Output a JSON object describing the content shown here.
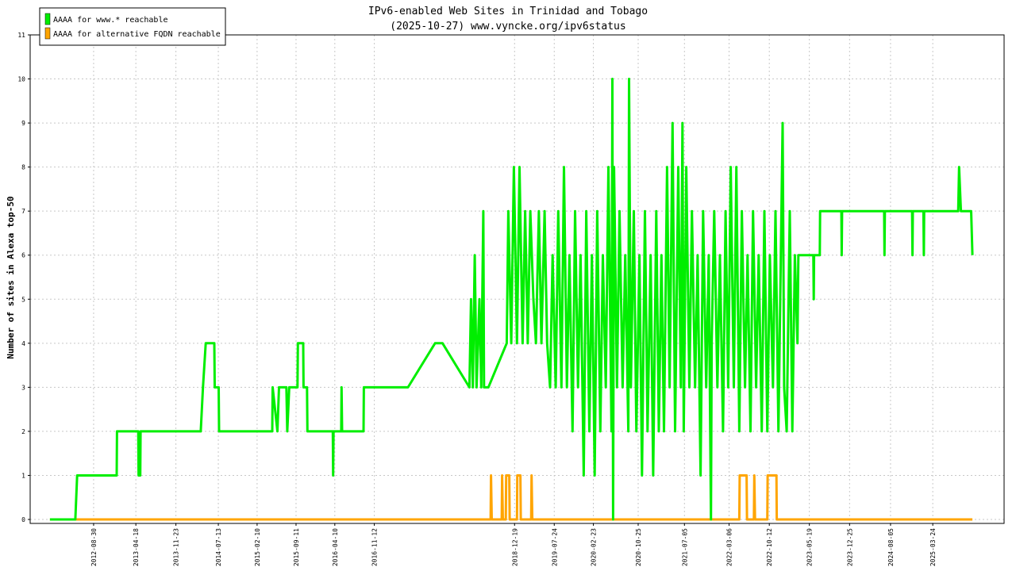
{
  "chart_data": {
    "type": "line",
    "title": "IPv6-enabled Web Sites in Trinidad and Tobago",
    "subtitle": "(2025-10-27) www.vyncke.org/ipv6status",
    "y_label": "Number of sites in Alexa top-50",
    "xlim": [
      "2011-09-18",
      "2026-04-18"
    ],
    "xticks": [
      "2012-08-30",
      "2013-04-18",
      "2013-11-23",
      "2014-07-13",
      "2015-02-10",
      "2015-09-11",
      "2016-04-10",
      "2016-11-12",
      "2018-12-19",
      "2019-07-24",
      "2020-02-23",
      "2020-10-25",
      "2021-07-05",
      "2022-03-06",
      "2022-10-12",
      "2023-05-19",
      "2023-12-25",
      "2024-08-05",
      "2025-03-24"
    ],
    "ylim": [
      0,
      11
    ],
    "yticks": [
      0,
      1,
      2,
      3,
      4,
      5,
      6,
      7,
      8,
      9,
      10,
      11
    ],
    "grid": true,
    "legend": "top-left",
    "series": [
      {
        "name": "AAAA for www.* reachable",
        "color": "#00ee00",
        "x": [
          "2012-01-04",
          "2012-05-22",
          "2012-06-01",
          "2013-01-03",
          "2013-01-05",
          "2013-05-01",
          "2013-05-03",
          "2013-05-12",
          "2013-05-14",
          "2014-04-08",
          "2014-04-20",
          "2014-05-05",
          "2014-06-21",
          "2014-06-23",
          "2014-07-15",
          "2014-07-17",
          "2015-05-04",
          "2015-05-06",
          "2015-06-01",
          "2015-06-10",
          "2015-07-20",
          "2015-07-25",
          "2015-08-05",
          "2015-09-19",
          "2015-09-21",
          "2015-10-20",
          "2015-10-22",
          "2015-11-10",
          "2015-11-12",
          "2016-03-30",
          "2016-04-01",
          "2016-04-03",
          "2016-05-15",
          "2016-05-17",
          "2016-05-20",
          "2016-09-14",
          "2016-09-16",
          "2017-05-15",
          "2017-10-10",
          "2017-11-20",
          "2018-04-16",
          "2018-04-25",
          "2018-05-05",
          "2018-05-15",
          "2018-05-25",
          "2018-06-10",
          "2018-06-20",
          "2018-07-01",
          "2018-07-05",
          "2018-07-29",
          "2018-11-06",
          "2018-11-15",
          "2018-12-01",
          "2018-12-15",
          "2019-01-01",
          "2019-01-15",
          "2019-02-01",
          "2019-02-15",
          "2019-03-01",
          "2019-03-15",
          "2019-04-01",
          "2019-04-15",
          "2019-05-01",
          "2019-05-15",
          "2019-06-01",
          "2019-06-15",
          "2019-07-01",
          "2019-07-15",
          "2019-08-01",
          "2019-08-15",
          "2019-09-01",
          "2019-09-15",
          "2019-10-01",
          "2019-10-15",
          "2019-11-01",
          "2019-11-15",
          "2019-12-01",
          "2019-12-15",
          "2020-01-01",
          "2020-01-15",
          "2020-02-01",
          "2020-02-15",
          "2020-03-01",
          "2020-03-15",
          "2020-04-01",
          "2020-04-15",
          "2020-05-01",
          "2020-05-15",
          "2020-06-01",
          "2020-06-06",
          "2020-06-10",
          "2020-06-15",
          "2020-07-01",
          "2020-07-15",
          "2020-08-01",
          "2020-08-15",
          "2020-09-01",
          "2020-09-05",
          "2020-09-15",
          "2020-10-01",
          "2020-10-15",
          "2020-11-01",
          "2020-11-15",
          "2020-12-01",
          "2020-12-15",
          "2021-01-01",
          "2021-01-15",
          "2021-02-01",
          "2021-02-15",
          "2021-03-01",
          "2021-03-15",
          "2021-04-01",
          "2021-04-15",
          "2021-05-01",
          "2021-05-15",
          "2021-06-01",
          "2021-06-15",
          "2021-06-24",
          "2021-07-01",
          "2021-07-15",
          "2021-08-01",
          "2021-08-15",
          "2021-09-01",
          "2021-09-15",
          "2021-10-01",
          "2021-10-15",
          "2021-11-01",
          "2021-11-15",
          "2021-11-27",
          "2021-12-01",
          "2021-12-15",
          "2022-01-01",
          "2022-01-15",
          "2022-02-01",
          "2022-02-15",
          "2022-03-01",
          "2022-03-15",
          "2022-04-01",
          "2022-04-15",
          "2022-05-01",
          "2022-05-15",
          "2022-06-01",
          "2022-06-15",
          "2022-07-01",
          "2022-07-15",
          "2022-08-01",
          "2022-08-15",
          "2022-09-01",
          "2022-09-15",
          "2022-10-01",
          "2022-10-15",
          "2022-11-01",
          "2022-11-15",
          "2022-12-01",
          "2022-12-24",
          "2023-01-01",
          "2023-01-15",
          "2023-02-01",
          "2023-02-15",
          "2023-03-01",
          "2023-03-15",
          "2023-03-20",
          "2023-06-10",
          "2023-06-12",
          "2023-06-14",
          "2023-07-15",
          "2023-07-17",
          "2023-11-10",
          "2023-11-12",
          "2023-11-14",
          "2024-07-01",
          "2024-07-03",
          "2024-07-05",
          "2024-12-01",
          "2024-12-03",
          "2024-12-05",
          "2025-02-01",
          "2025-02-03",
          "2025-02-05",
          "2025-08-10",
          "2025-08-15",
          "2025-08-25",
          "2025-10-20",
          "2025-10-27"
        ],
        "values": [
          0,
          0,
          1,
          1,
          2,
          2,
          1,
          1,
          2,
          2,
          3,
          4,
          4,
          3,
          3,
          2,
          2,
          3,
          2,
          3,
          3,
          2,
          3,
          3,
          4,
          4,
          3,
          3,
          2,
          2,
          1,
          2,
          2,
          3,
          2,
          2,
          3,
          3,
          4,
          4,
          3,
          5,
          3,
          6,
          3,
          5,
          3,
          7,
          3,
          3,
          4,
          7,
          4,
          8,
          4,
          8,
          4,
          7,
          4,
          7,
          5,
          4,
          7,
          4,
          7,
          4,
          3,
          6,
          3,
          7,
          3,
          8,
          3,
          6,
          2,
          7,
          3,
          6,
          1,
          7,
          2,
          6,
          1,
          7,
          2,
          6,
          3,
          8,
          2,
          10,
          0,
          8,
          3,
          7,
          3,
          6,
          2,
          10,
          3,
          7,
          2,
          6,
          1,
          7,
          2,
          6,
          1,
          7,
          2,
          6,
          2,
          8,
          3,
          9,
          2,
          8,
          3,
          9,
          2,
          8,
          3,
          7,
          3,
          6,
          1,
          7,
          3,
          6,
          0,
          4,
          7,
          3,
          6,
          2,
          7,
          3,
          8,
          3,
          8,
          2,
          7,
          3,
          6,
          2,
          7,
          3,
          6,
          2,
          7,
          2,
          6,
          3,
          7,
          2,
          9,
          3,
          2,
          7,
          2,
          6,
          4,
          6,
          6,
          5,
          6,
          6,
          7,
          7,
          6,
          7,
          7,
          6,
          7,
          7,
          6,
          7,
          7,
          6,
          7,
          7,
          8,
          7,
          7,
          6
        ]
      },
      {
        "name": "AAAA for alternative FQDN reachable",
        "color": "#ffa500",
        "x": [
          "2012-01-04",
          "2018-08-10",
          "2018-08-12",
          "2018-08-16",
          "2018-10-10",
          "2018-10-12",
          "2018-10-16",
          "2018-11-01",
          "2018-11-03",
          "2018-11-20",
          "2018-11-22",
          "2019-01-01",
          "2019-01-03",
          "2019-01-20",
          "2019-01-22",
          "2019-03-20",
          "2019-03-22",
          "2019-03-26",
          "2022-05-01",
          "2022-05-03",
          "2022-06-10",
          "2022-06-12",
          "2022-07-20",
          "2022-07-22",
          "2022-07-26",
          "2022-10-01",
          "2022-10-03",
          "2022-11-20",
          "2022-11-22",
          "2025-10-27"
        ],
        "values": [
          0,
          0,
          1,
          0,
          0,
          1,
          0,
          0,
          1,
          1,
          0,
          0,
          1,
          1,
          0,
          0,
          1,
          0,
          0,
          1,
          1,
          0,
          0,
          1,
          0,
          0,
          1,
          1,
          0,
          0
        ]
      }
    ]
  }
}
